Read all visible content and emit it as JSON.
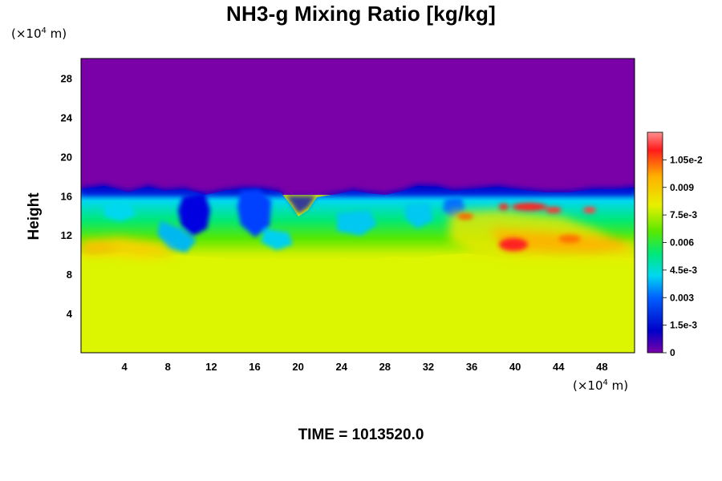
{
  "chart_data": {
    "type": "heatmap",
    "title": "NH3-g Mixing Ratio [kg/kg]",
    "ylabel": "Height",
    "xlabel": "",
    "y_unit_prefix": "(×10",
    "y_unit_exp": "4",
    "y_unit_suffix": " m)",
    "x_unit_prefix": "(×10",
    "x_unit_exp": "4",
    "x_unit_suffix": " m)",
    "xlim": [
      0,
      51
    ],
    "ylim": [
      0,
      30
    ],
    "x_ticks": [
      "4",
      "8",
      "12",
      "16",
      "20",
      "24",
      "28",
      "32",
      "36",
      "40",
      "44",
      "48"
    ],
    "x_tick_values": [
      4,
      8,
      12,
      16,
      20,
      24,
      28,
      32,
      36,
      40,
      44,
      48
    ],
    "y_ticks": [
      "4",
      "8",
      "12",
      "16",
      "20",
      "24",
      "28"
    ],
    "y_tick_values": [
      4,
      8,
      12,
      16,
      20,
      24,
      28
    ],
    "colorbar": {
      "range": [
        0,
        0.012
      ],
      "tick_labels": [
        "0",
        "1.5e-3",
        "0.003",
        "4.5e-3",
        "0.006",
        "7.5e-3",
        "0.009",
        "1.05e-2"
      ],
      "tick_values": [
        0,
        0.0015,
        0.003,
        0.0045,
        0.006,
        0.0075,
        0.009,
        0.0105
      ],
      "colors": [
        "#7a00a8",
        "#0000c8",
        "#0060ff",
        "#00d8f0",
        "#00e878",
        "#58e800",
        "#e8f000",
        "#ffb000",
        "#ff1a1a",
        "#ff9090"
      ]
    },
    "regions": {
      "upper_layer_value": 0,
      "lower_layer_value": 0.0078,
      "cloud_top_height": 16.3,
      "cloud_base_height": 9.3,
      "mixing_zone_value_range": [
        0.003,
        0.0095
      ]
    },
    "grid": false
  },
  "footer": {
    "time_label": "TIME = 1013520.0"
  }
}
